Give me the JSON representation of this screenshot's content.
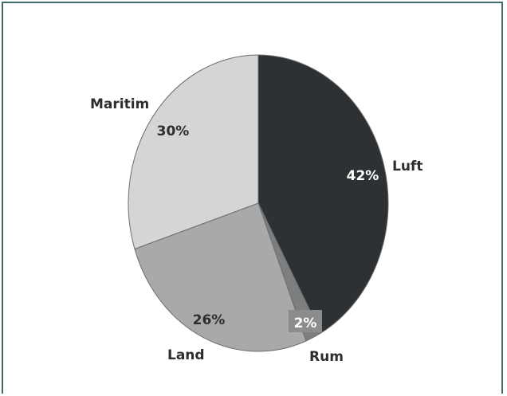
{
  "chart_data": {
    "type": "pie",
    "title": "",
    "start_angle_deg": -90,
    "direction": "clockwise",
    "slices": [
      {
        "name": "Luft",
        "value": 42,
        "label": "42%",
        "color": "#2e3133",
        "label_color": "#ffffff"
      },
      {
        "name": "Rum",
        "value": 2,
        "label": "2%",
        "color": "#7c7e80",
        "label_color": "#ffffff"
      },
      {
        "name": "Land",
        "value": 26,
        "label": "26%",
        "color": "#a8a9ab",
        "label_color": "#2d2d2d"
      },
      {
        "name": "Maritim",
        "value": 30,
        "label": "30%",
        "color": "#d6d5d4",
        "label_color": "#2d2d2d"
      }
    ]
  },
  "colors": {
    "frame_border": "#3f6a6a",
    "slice_stroke": "#6d6d6d",
    "pct_badge_bg": "#8a8c8e"
  }
}
